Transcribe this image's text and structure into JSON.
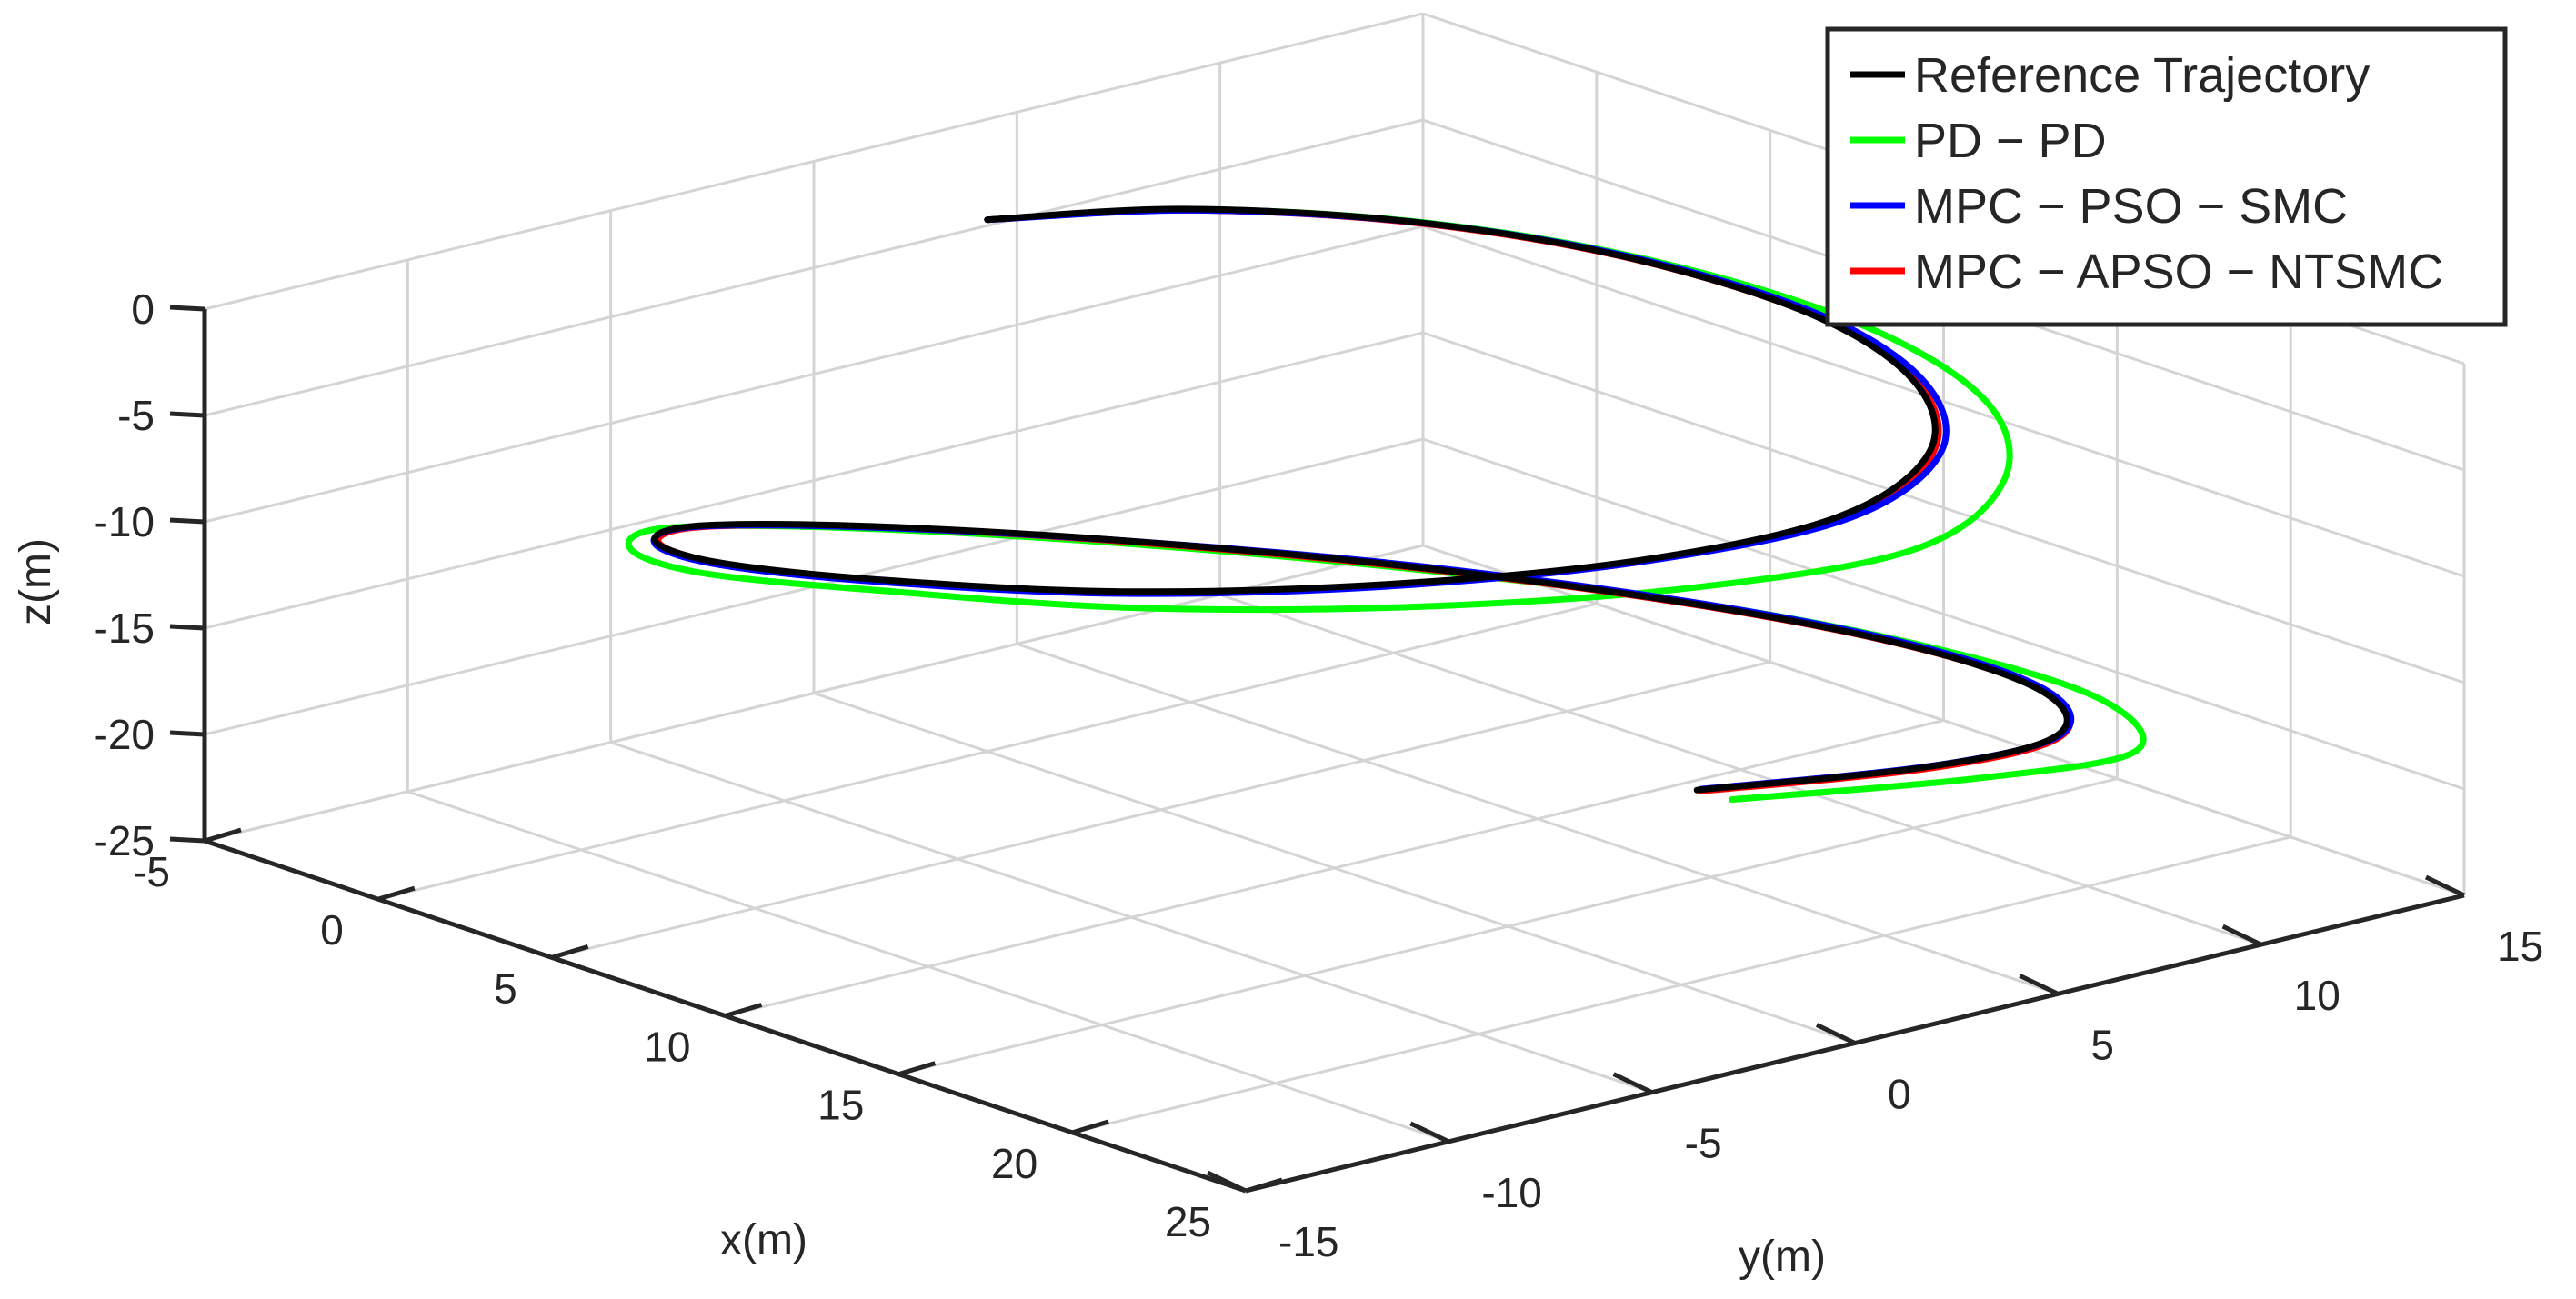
{
  "chart_data": {
    "type": "line",
    "projection": "3d",
    "title": "",
    "xlabel": "x(m)",
    "ylabel": "y(m)",
    "zlabel": "z(m)",
    "xlim": [
      -5,
      25
    ],
    "ylim": [
      -15,
      15
    ],
    "zlim": [
      -25,
      0
    ],
    "xticks": [
      "-5",
      "0",
      "5",
      "10",
      "15",
      "20",
      "25"
    ],
    "yticks": [
      "-15",
      "-10",
      "-5",
      "0",
      "5",
      "10",
      "15"
    ],
    "zticks": [
      "0",
      "-5",
      "-10",
      "-15",
      "-20",
      "-25"
    ],
    "grid": true,
    "legend_position": "top-right",
    "series": [
      {
        "name": "Reference Trajectory",
        "color": "#000000",
        "x": [
          0,
          1.2,
          4,
          7.8,
          12.2,
          16,
          18.8,
          20,
          18.8,
          16,
          12.2,
          7.8,
          4,
          1.2,
          0,
          1.2,
          4,
          7.8,
          12.2,
          16,
          18.8,
          20,
          18.8,
          16
        ],
        "y": [
          0,
          3.8,
          7.1,
          9.2,
          10,
          9.2,
          7.1,
          3.8,
          0,
          -3.8,
          -7.1,
          -9.2,
          -10,
          -9.2,
          -7.1,
          -3.8,
          0,
          3.8,
          7.1,
          9.2,
          10,
          9.2,
          7.1,
          3.8
        ],
        "z": [
          0,
          -0.6,
          -1.2,
          -1.8,
          -2.5,
          -3.2,
          -4,
          -4.8,
          -5.7,
          -6.6,
          -7.5,
          -8.4,
          -9.3,
          -10.2,
          -11.1,
          -12,
          -12.9,
          -13.8,
          -14.7,
          -15.6,
          -16.6,
          -17.6,
          -18.7,
          -19.8
        ]
      },
      {
        "name": "PD − PD",
        "color": "#00ff00",
        "x": [
          0,
          1.6,
          4.6,
          8.6,
          13.2,
          17.4,
          20.6,
          22,
          20.4,
          17.2,
          13,
          8.2,
          4.2,
          1.2,
          -0.4,
          0.8,
          3.8,
          7.8,
          12.4,
          16.6,
          19.8,
          21.6,
          20,
          17
        ],
        "y": [
          0,
          4.2,
          7.6,
          9.8,
          10.6,
          9.8,
          7.4,
          4,
          0,
          -4,
          -7.4,
          -9.6,
          -10.6,
          -9.8,
          -7.6,
          -4.2,
          -0.2,
          3.8,
          7.4,
          9.6,
          10.6,
          9.8,
          7.4,
          3.8
        ],
        "z": [
          0,
          -0.6,
          -1.3,
          -2.1,
          -2.9,
          -3.7,
          -4.5,
          -5.3,
          -6.1,
          -6.9,
          -7.7,
          -8.5,
          -9.4,
          -10.3,
          -11.2,
          -12.1,
          -13,
          -13.9,
          -14.8,
          -15.7,
          -16.7,
          -17.7,
          -18.7,
          -19.7
        ]
      },
      {
        "name": "MPC − PSO − SMC",
        "color": "#0000ff",
        "x": [
          0,
          1.4,
          4.2,
          8,
          12.4,
          16.2,
          19,
          20.2,
          18.9,
          16.1,
          12.3,
          7.9,
          4.1,
          1.3,
          0,
          1.2,
          4,
          7.8,
          12.2,
          16,
          18.8,
          20,
          18.8,
          16
        ],
        "y": [
          0,
          3.9,
          7.2,
          9.3,
          10.1,
          9.3,
          7.2,
          3.9,
          0,
          -3.9,
          -7.2,
          -9.3,
          -10.1,
          -9.3,
          -7.2,
          -3.9,
          0,
          3.9,
          7.2,
          9.3,
          10.1,
          9.3,
          7.2,
          3.9
        ],
        "z": [
          0,
          -0.6,
          -1.2,
          -1.8,
          -2.5,
          -3.2,
          -4,
          -4.8,
          -5.7,
          -6.6,
          -7.5,
          -8.4,
          -9.3,
          -10.2,
          -11.1,
          -12,
          -12.9,
          -13.8,
          -14.7,
          -15.6,
          -16.6,
          -17.6,
          -18.7,
          -19.8
        ]
      },
      {
        "name": "MPC − APSO − NTSMC",
        "color": "#ff0000",
        "x": [
          0,
          1.3,
          4.1,
          7.9,
          12.3,
          16.1,
          18.9,
          20.1,
          18.9,
          16.1,
          12.3,
          7.9,
          4.1,
          1.3,
          0.1,
          1.3,
          4.1,
          7.9,
          12.3,
          16.1,
          18.9,
          20.1,
          18.9,
          16.1
        ],
        "y": [
          0,
          3.8,
          7.1,
          9.2,
          10,
          9.2,
          7.1,
          3.8,
          0,
          -3.8,
          -7.1,
          -9.2,
          -10,
          -9.2,
          -7.1,
          -3.8,
          0,
          3.8,
          7.1,
          9.2,
          10,
          9.2,
          7.1,
          3.8
        ],
        "z": [
          0,
          -0.6,
          -1.2,
          -1.8,
          -2.5,
          -3.2,
          -4,
          -4.8,
          -5.7,
          -6.6,
          -7.5,
          -8.4,
          -9.3,
          -10.2,
          -11.1,
          -12,
          -12.9,
          -13.8,
          -14.7,
          -15.6,
          -16.6,
          -17.6,
          -18.7,
          -19.8
        ]
      }
    ]
  }
}
